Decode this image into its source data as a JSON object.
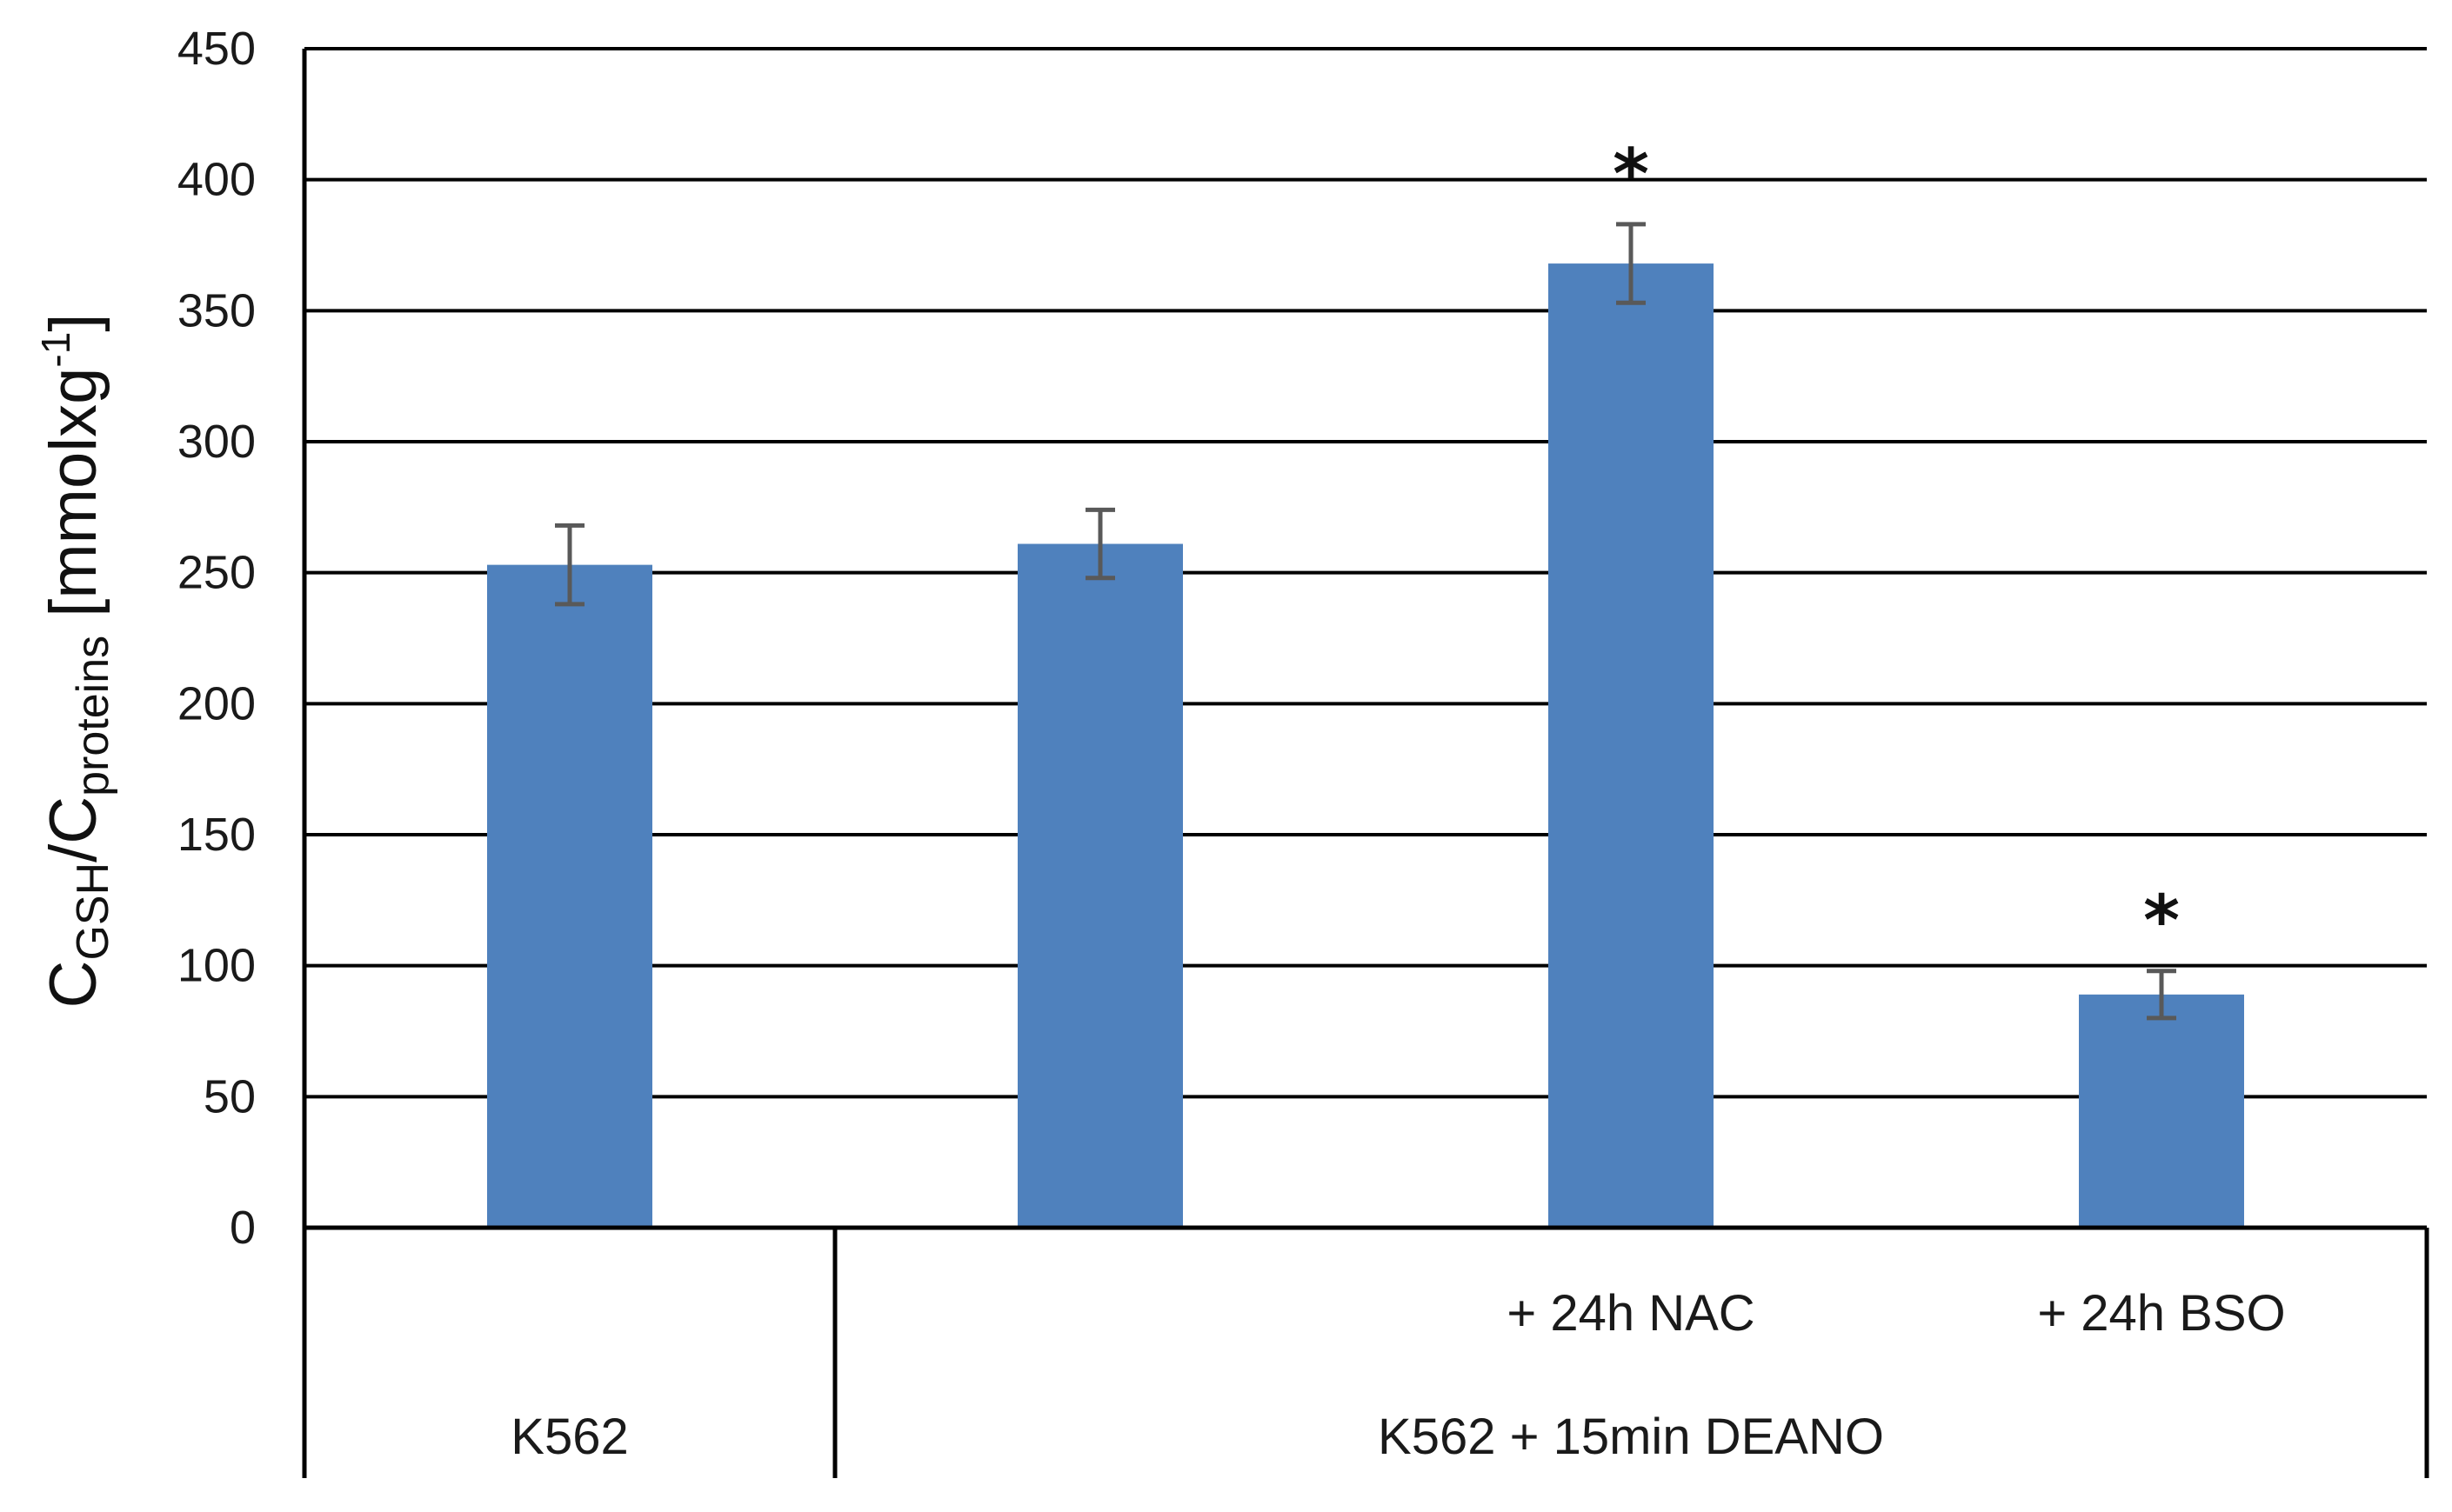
{
  "chart_data": {
    "type": "bar",
    "ylabel_parts": {
      "c1": "C",
      "sub1": "GSH",
      "slash": "/C",
      "sub2": "proteins",
      "unit": " [mmolxg",
      "sup": "-1",
      "close": "]"
    },
    "ylim": [
      0,
      450
    ],
    "yticks": [
      0,
      50,
      100,
      150,
      200,
      250,
      300,
      350,
      400,
      450
    ],
    "grid": true,
    "bar_color": "#4f81bd",
    "error_color": "#595959",
    "bars": [
      {
        "value": 253,
        "error": 15,
        "label": "",
        "star": ""
      },
      {
        "value": 261,
        "error": 13,
        "label": "",
        "star": ""
      },
      {
        "value": 368,
        "error": 15,
        "label": "+ 24h NAC",
        "star": "*"
      },
      {
        "value": 89,
        "error": 9,
        "label": "+ 24h BSO",
        "star": "*"
      }
    ],
    "groups": [
      {
        "label": "K562",
        "bars": [
          0
        ]
      },
      {
        "label": "K562 + 15min DEANO",
        "bars": [
          1,
          2,
          3
        ]
      }
    ]
  }
}
